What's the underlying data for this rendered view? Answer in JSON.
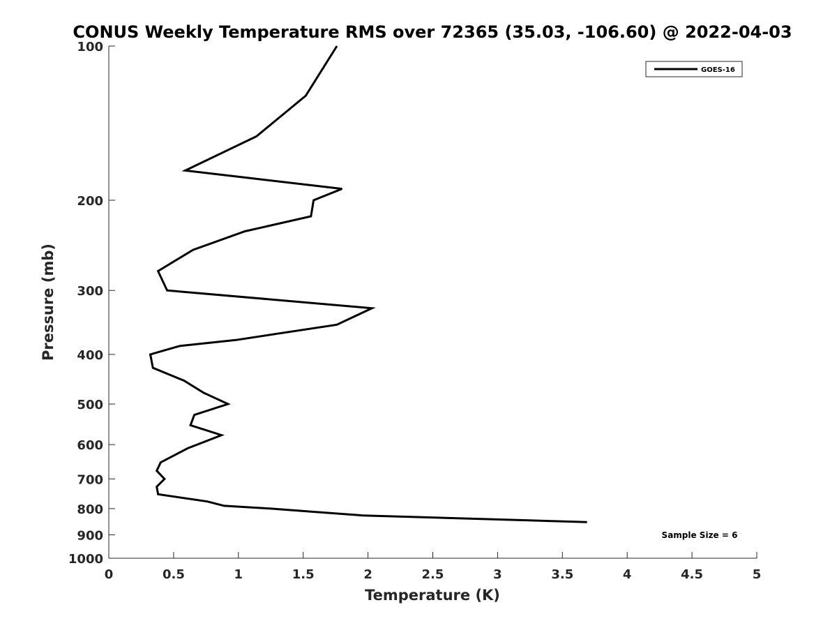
{
  "chart_data": {
    "type": "line",
    "title": "CONUS Weekly Temperature RMS over 72365 (35.03, -106.60) @ 2022-04-03",
    "xlabel": "Temperature (K)",
    "ylabel": "Pressure (mb)",
    "xlim": [
      0,
      5
    ],
    "ylim": [
      1000,
      100
    ],
    "y_scale": "log",
    "x_ticks": [
      "0",
      "0.5",
      "1",
      "1.5",
      "2",
      "2.5",
      "3",
      "3.5",
      "4",
      "4.5",
      "5"
    ],
    "x_tick_values": [
      0,
      0.5,
      1,
      1.5,
      2,
      2.5,
      3,
      3.5,
      4,
      4.5,
      5
    ],
    "y_ticks": [
      "100",
      "200",
      "300",
      "400",
      "500",
      "600",
      "700",
      "800",
      "900",
      "1000"
    ],
    "y_tick_values": [
      100,
      200,
      300,
      400,
      500,
      600,
      700,
      800,
      900,
      1000
    ],
    "grid": false,
    "legend_position": "top-right",
    "series": [
      {
        "name": "GOES-16",
        "color": "#000000",
        "points": [
          [
            1.76,
            100
          ],
          [
            1.52,
            125
          ],
          [
            1.14,
            150
          ],
          [
            0.59,
            175
          ],
          [
            1.8,
            190
          ],
          [
            1.58,
            200
          ],
          [
            1.56,
            215
          ],
          [
            1.05,
            230
          ],
          [
            0.65,
            250
          ],
          [
            0.38,
            275
          ],
          [
            0.45,
            300
          ],
          [
            2.03,
            325
          ],
          [
            1.76,
            350
          ],
          [
            0.98,
            375
          ],
          [
            0.55,
            385
          ],
          [
            0.32,
            400
          ],
          [
            0.34,
            425
          ],
          [
            0.58,
            450
          ],
          [
            0.73,
            475
          ],
          [
            0.92,
            500
          ],
          [
            0.66,
            525
          ],
          [
            0.63,
            550
          ],
          [
            0.87,
            575
          ],
          [
            0.61,
            610
          ],
          [
            0.4,
            650
          ],
          [
            0.37,
            675
          ],
          [
            0.43,
            700
          ],
          [
            0.37,
            725
          ],
          [
            0.38,
            750
          ],
          [
            0.76,
            775
          ],
          [
            0.89,
            790
          ],
          [
            1.25,
            800
          ],
          [
            1.59,
            812
          ],
          [
            1.96,
            825
          ],
          [
            3.69,
            850
          ]
        ]
      }
    ],
    "annotation": "Sample Size = 6"
  }
}
